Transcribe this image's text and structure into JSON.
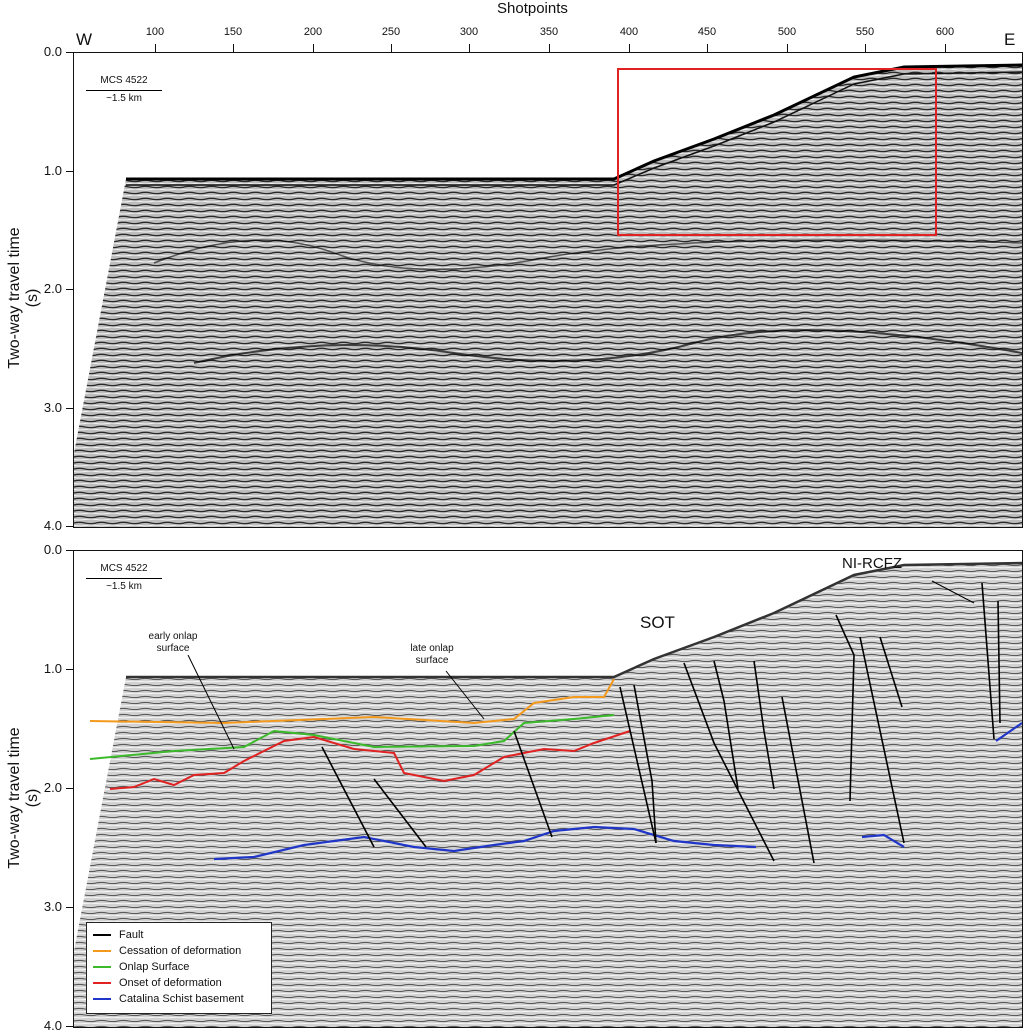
{
  "x_axis_title": "Shotpoints",
  "x_ticks": [
    "100",
    "150",
    "200",
    "250",
    "300",
    "350",
    "400",
    "450",
    "500",
    "550",
    "600"
  ],
  "west_label": "W",
  "east_label": "E",
  "y_axis_title": "Two-way travel time (s)",
  "y_ticks": [
    "0.0",
    "1.0",
    "2.0",
    "3.0",
    "4.0"
  ],
  "top_panel": {
    "line_name": "MCS 4522",
    "scale": "~1.5 km"
  },
  "bottom_panel": {
    "line_name": "MCS 4522",
    "scale": "~1.5 km",
    "annotations": {
      "early_onlap": "early onlap\nsurface",
      "late_onlap": "late onlap\nsurface",
      "sot": "SOT",
      "nircfz": "NI-RCFZ"
    }
  },
  "legend": [
    {
      "label": "Fault",
      "color": "#000000"
    },
    {
      "label": "Cessation of deformation",
      "color": "#f39a1e"
    },
    {
      "label": "Onlap Surface",
      "color": "#3cba2c"
    },
    {
      "label": "Onset of deformation",
      "color": "#e02222"
    },
    {
      "label": "Catalina Schist basement",
      "color": "#1f36c8"
    }
  ],
  "colors": {
    "highlight_box": "#e02222"
  }
}
